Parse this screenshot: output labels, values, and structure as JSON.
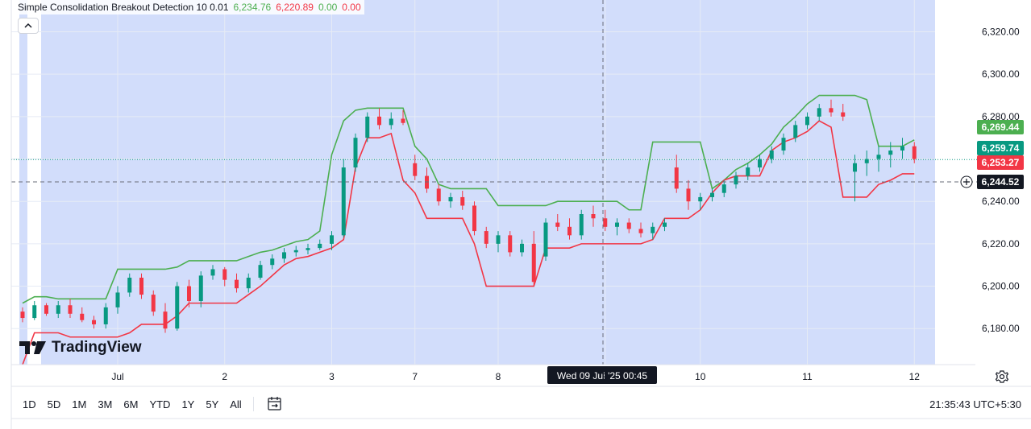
{
  "indicator": {
    "name": "Simple Consolidation Breakout Detection 10 0.01",
    "value1": "6,234.76",
    "value2": "6,220.89",
    "value3": "0.00",
    "value4": "0.00",
    "color1": "#4caf50",
    "color2": "#f23645"
  },
  "collapse_icon": "chevron-up-icon",
  "brand": "TradingView",
  "crosshair": {
    "time_label": "Wed 09 Jul '25   00:45",
    "price_label": "6,244.52"
  },
  "price_tags": [
    {
      "value": 6269.44,
      "label": "6,269.44",
      "color": "#4caf50"
    },
    {
      "value": 6259.74,
      "label": "6,259.74",
      "color": "#089981"
    },
    {
      "value": 6253.27,
      "label": "6,253.27",
      "color": "#f23645"
    }
  ],
  "range_buttons": [
    "1D",
    "5D",
    "1M",
    "3M",
    "6M",
    "YTD",
    "1Y",
    "5Y",
    "All"
  ],
  "clock": "21:35:43 UTC+5:30",
  "colors": {
    "up": "#089981",
    "down": "#f23645",
    "upper_band": "#4caf50",
    "lower_band": "#f23645",
    "consolidation_fill": "#d2ddfb"
  },
  "chart_data": {
    "type": "candlestick",
    "title": "",
    "y_ticks": [
      "6,180.00",
      "6,200.00",
      "6,220.00",
      "6,240.00",
      "6,260.00",
      "6,280.00",
      "6,300.00",
      "6,320.00"
    ],
    "y_tick_values": [
      6180,
      6200,
      6220,
      6240,
      6260,
      6280,
      6300,
      6320
    ],
    "ylim": [
      6163,
      6335
    ],
    "x_ticks": [
      "Jul",
      "2",
      "3",
      "7",
      "8",
      "9",
      "10",
      "11",
      "12"
    ],
    "x_tick_index": [
      8,
      17,
      26,
      33,
      40,
      49,
      57,
      66,
      75
    ],
    "bar_count": 76,
    "last_price": 6259.74,
    "grid": true,
    "candles": [
      [
        6188,
        6190,
        6183,
        6185
      ],
      [
        6185,
        6193,
        6184,
        6191
      ],
      [
        6191,
        6192,
        6186,
        6187
      ],
      [
        6187,
        6193,
        6185,
        6191
      ],
      [
        6191,
        6194,
        6185,
        6187
      ],
      [
        6187,
        6190,
        6183,
        6184
      ],
      [
        6184,
        6186,
        6180,
        6182
      ],
      [
        6182,
        6192,
        6180,
        6190
      ],
      [
        6190,
        6200,
        6187,
        6197
      ],
      [
        6197,
        6206,
        6195,
        6204
      ],
      [
        6204,
        6206,
        6194,
        6196
      ],
      [
        6196,
        6198,
        6186,
        6188
      ],
      [
        6188,
        6192,
        6178,
        6180
      ],
      [
        6180,
        6202,
        6179,
        6200
      ],
      [
        6200,
        6203,
        6190,
        6193
      ],
      [
        6193,
        6207,
        6190,
        6205
      ],
      [
        6205,
        6210,
        6203,
        6208
      ],
      [
        6208,
        6209,
        6200,
        6203
      ],
      [
        6203,
        6206,
        6197,
        6199
      ],
      [
        6199,
        6206,
        6197,
        6204
      ],
      [
        6204,
        6212,
        6203,
        6210
      ],
      [
        6210,
        6215,
        6208,
        6213
      ],
      [
        6213,
        6218,
        6211,
        6216
      ],
      [
        6216,
        6219,
        6214,
        6217
      ],
      [
        6217,
        6220,
        6215,
        6218
      ],
      [
        6218,
        6222,
        6217,
        6220
      ],
      [
        6220,
        6226,
        6217,
        6224
      ],
      [
        6224,
        6260,
        6223,
        6256
      ],
      [
        6256,
        6272,
        6254,
        6270
      ],
      [
        6270,
        6282,
        6268,
        6280
      ],
      [
        6280,
        6284,
        6274,
        6276
      ],
      [
        6276,
        6282,
        6274,
        6279
      ],
      [
        6279,
        6283,
        6276,
        6277
      ],
      [
        6258,
        6262,
        6250,
        6252
      ],
      [
        6252,
        6256,
        6244,
        6246
      ],
      [
        6246,
        6248,
        6238,
        6240
      ],
      [
        6240,
        6244,
        6237,
        6242
      ],
      [
        6242,
        6245,
        6236,
        6238
      ],
      [
        6238,
        6240,
        6224,
        6226
      ],
      [
        6226,
        6228,
        6218,
        6220
      ],
      [
        6220,
        6226,
        6216,
        6224
      ],
      [
        6224,
        6226,
        6214,
        6216
      ],
      [
        6216,
        6222,
        6214,
        6220
      ],
      [
        6220,
        6226,
        6200,
        6202
      ],
      [
        6214,
        6232,
        6212,
        6230
      ],
      [
        6230,
        6234,
        6226,
        6228
      ],
      [
        6228,
        6232,
        6222,
        6224
      ],
      [
        6224,
        6236,
        6222,
        6234
      ],
      [
        6234,
        6238,
        6228,
        6232
      ],
      [
        6232,
        6236,
        6226,
        6228
      ],
      [
        6228,
        6232,
        6224,
        6230
      ],
      [
        6230,
        6232,
        6225,
        6227
      ],
      [
        6227,
        6230,
        6223,
        6225
      ],
      [
        6225,
        6230,
        6222,
        6228
      ],
      [
        6228,
        6232,
        6226,
        6230
      ],
      [
        6256,
        6262,
        6244,
        6246
      ],
      [
        6246,
        6250,
        6236,
        6240
      ],
      [
        6240,
        6244,
        6236,
        6242
      ],
      [
        6242,
        6246,
        6240,
        6244
      ],
      [
        6244,
        6250,
        6242,
        6248
      ],
      [
        6248,
        6254,
        6246,
        6252
      ],
      [
        6252,
        6258,
        6250,
        6256
      ],
      [
        6256,
        6262,
        6254,
        6260
      ],
      [
        6260,
        6266,
        6258,
        6264
      ],
      [
        6264,
        6272,
        6262,
        6270
      ],
      [
        6270,
        6278,
        6268,
        6276
      ],
      [
        6276,
        6282,
        6274,
        6280
      ],
      [
        6280,
        6286,
        6278,
        6284
      ],
      [
        6284,
        6288,
        6280,
        6282
      ],
      [
        6282,
        6286,
        6278,
        6280
      ],
      [
        6254,
        6262,
        6240,
        6258
      ],
      [
        6258,
        6264,
        6252,
        6260
      ],
      [
        6260,
        6266,
        6254,
        6262
      ],
      [
        6262,
        6268,
        6256,
        6264
      ],
      [
        6264,
        6270,
        6260,
        6266
      ],
      [
        6266,
        6268,
        6258,
        6260
      ]
    ],
    "upper_band": [
      6192,
      6195,
      6195,
      6194,
      6194,
      6194,
      6194,
      6194,
      6208,
      6208,
      6208,
      6208,
      6208,
      6209,
      6212,
      6212,
      6212,
      6212,
      6212,
      6214,
      6216,
      6217,
      6219,
      6221,
      6222,
      6226,
      6262,
      6278,
      6283,
      6284,
      6284,
      6284,
      6284,
      6266,
      6260,
      6248,
      6246,
      6246,
      6246,
      6246,
      6238,
      6238,
      6238,
      6238,
      6238,
      6240,
      6240,
      6240,
      6240,
      6240,
      6240,
      6236,
      6236,
      6268,
      6268,
      6268,
      6268,
      6268,
      6246,
      6250,
      6255,
      6258,
      6262,
      6267,
      6275,
      6280,
      6286,
      6290,
      6290,
      6290,
      6290,
      6288,
      6266,
      6266,
      6266,
      6269
    ],
    "lower_band": [
      6163,
      6178,
      6178,
      6178,
      6176,
      6176,
      6176,
      6176,
      6176,
      6178,
      6182,
      6182,
      6182,
      6186,
      6192,
      6192,
      6192,
      6192,
      6192,
      6196,
      6200,
      6205,
      6210,
      6213,
      6214,
      6216,
      6218,
      6222,
      6256,
      6270,
      6270,
      6272,
      6250,
      6244,
      6232,
      6232,
      6232,
      6232,
      6220,
      6200,
      6200,
      6200,
      6200,
      6200,
      6218,
      6218,
      6218,
      6220,
      6220,
      6220,
      6220,
      6220,
      6220,
      6222,
      6232,
      6232,
      6232,
      6236,
      6244,
      6250,
      6252,
      6252,
      6252,
      6264,
      6268,
      6270,
      6273,
      6278,
      6275,
      6242,
      6242,
      6242,
      6248,
      6250,
      6253,
      6253
    ]
  }
}
